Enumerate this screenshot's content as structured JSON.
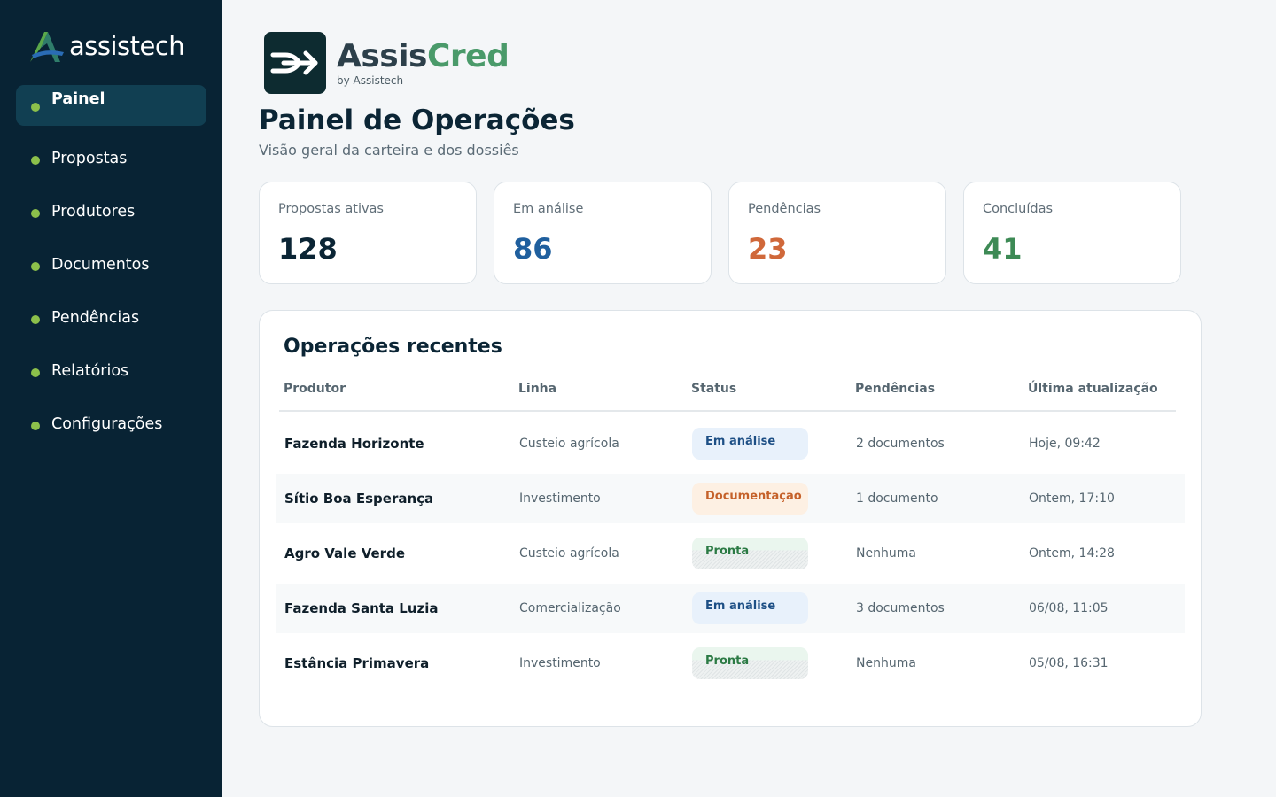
{
  "sidebar": {
    "brand_name": "assistech",
    "items": [
      {
        "label": "Painel",
        "active": true
      },
      {
        "label": "Propostas"
      },
      {
        "label": "Produtores"
      },
      {
        "label": "Documentos"
      },
      {
        "label": "Pendências"
      },
      {
        "label": "Relatórios"
      },
      {
        "label": "Configurações"
      }
    ]
  },
  "logo": {
    "title_part1": "Assis",
    "title_part2": "Cred",
    "subtitle": "by Assistech"
  },
  "header": {
    "title": "Painel de Operações",
    "subtitle": "Visão geral da carteira e dos dossiês"
  },
  "kpis": [
    {
      "label": "Propostas ativas",
      "value": "128",
      "color": "#0b2535"
    },
    {
      "label": "Em análise",
      "value": "86",
      "color": "#1f5f9e"
    },
    {
      "label": "Pendências",
      "value": "23",
      "color": "#d0683a"
    },
    {
      "label": "Concluídas",
      "value": "41",
      "color": "#3d8a55"
    }
  ],
  "table": {
    "title": "Operações recentes",
    "headers": {
      "produtor": "Produtor",
      "linha": "Linha",
      "status": "Status",
      "pendencias": "Pendências",
      "atualizacao": "Última atualização"
    },
    "rows": [
      {
        "produtor": "Fazenda Horizonte",
        "linha": "Custeio agrícola",
        "status": "Em análise",
        "status_type": "analise",
        "pendencias": "2 documentos",
        "atualizacao": "Hoje, 09:42"
      },
      {
        "produtor": "Sítio Boa Esperança",
        "linha": "Investimento",
        "status": "Documentação",
        "status_type": "doc",
        "pendencias": "1 documento",
        "atualizacao": "Ontem, 17:10"
      },
      {
        "produtor": "Agro Vale Verde",
        "linha": "Custeio agrícola",
        "status": "Pronta",
        "status_type": "pronta",
        "pendencias": "Nenhuma",
        "atualizacao": "Ontem, 14:28"
      },
      {
        "produtor": "Fazenda Santa Luzia",
        "linha": "Comercialização",
        "status": "Em análise",
        "status_type": "analise",
        "pendencias": "3 documentos",
        "atualizacao": "06/08, 11:05"
      },
      {
        "produtor": "Estância Primavera",
        "linha": "Investimento",
        "status": "Pronta",
        "status_type": "pronta",
        "pendencias": "Nenhuma",
        "atualizacao": "05/08, 16:31"
      }
    ]
  }
}
